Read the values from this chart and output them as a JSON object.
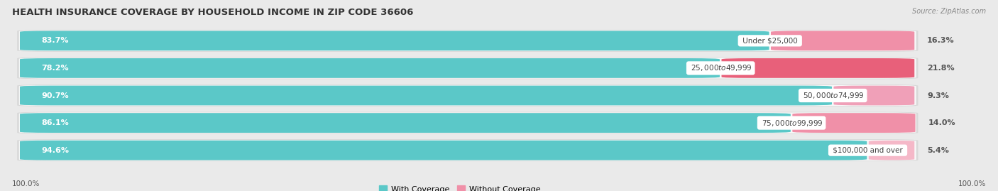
{
  "title": "HEALTH INSURANCE COVERAGE BY HOUSEHOLD INCOME IN ZIP CODE 36606",
  "source": "Source: ZipAtlas.com",
  "categories": [
    "Under $25,000",
    "$25,000 to $49,999",
    "$50,000 to $74,999",
    "$75,000 to $99,999",
    "$100,000 and over"
  ],
  "with_coverage": [
    83.7,
    78.2,
    90.7,
    86.1,
    94.6
  ],
  "without_coverage": [
    16.3,
    21.8,
    9.3,
    14.0,
    5.4
  ],
  "color_with": "#5BC8C8",
  "color_without": "#F090A8",
  "color_without_row2": "#E8607A",
  "background_color": "#eaeaea",
  "bar_bg_color": "#f8f8f8",
  "bar_shadow_color": "#d8d8d8",
  "title_fontsize": 9.5,
  "label_fontsize": 8,
  "legend_fontsize": 8,
  "footer_label": "100.0%",
  "bar_height": 0.72,
  "figsize": [
    14.06,
    2.69
  ],
  "dpi": 100
}
